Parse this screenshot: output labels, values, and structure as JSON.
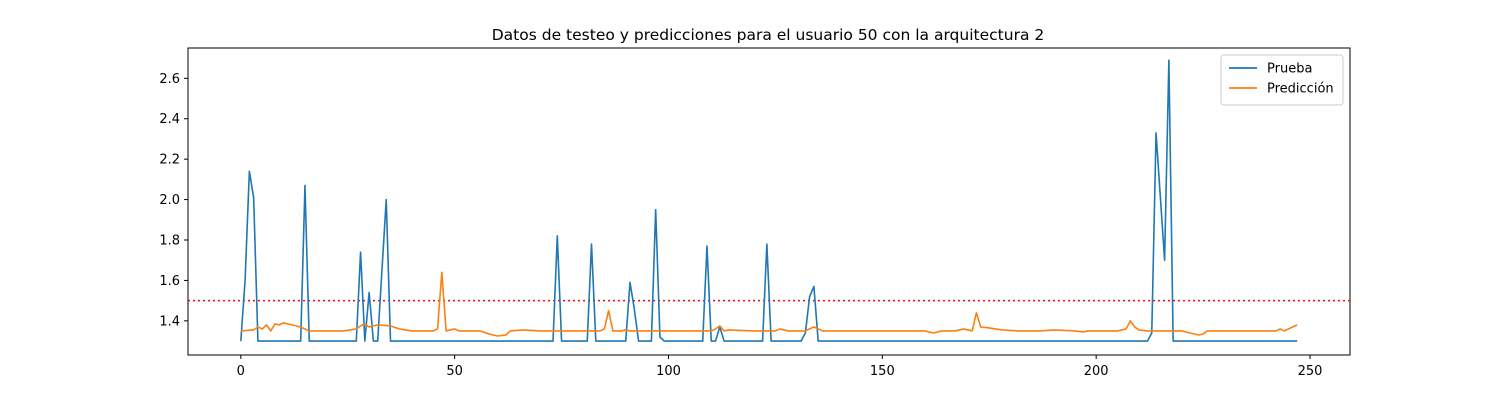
{
  "chart_data": {
    "type": "line",
    "title": "Datos de testeo y predicciones para el usuario 50 con la arquitectura 2",
    "xlabel": "",
    "ylabel": "",
    "xlim": [
      -12.35,
      259.35
    ],
    "ylim": [
      1.231,
      2.75
    ],
    "x_ticks": [
      0,
      50,
      100,
      150,
      200,
      250
    ],
    "y_ticks": [
      1.4,
      1.6,
      1.8,
      2.0,
      2.2,
      2.4,
      2.6
    ],
    "grid": false,
    "legend_position": "top-right",
    "threshold": {
      "value": 1.5,
      "color": "#ff0000",
      "style": "dotted"
    },
    "series": [
      {
        "name": "Prueba",
        "color": "#1f77b4",
        "points": [
          [
            0,
            1.3
          ],
          [
            1,
            1.6
          ],
          [
            2,
            2.14
          ],
          [
            3,
            2.01
          ],
          [
            4,
            1.3
          ],
          [
            14,
            1.3
          ],
          [
            15,
            2.07
          ],
          [
            16,
            1.3
          ],
          [
            27,
            1.3
          ],
          [
            28,
            1.74
          ],
          [
            29,
            1.3
          ],
          [
            30,
            1.54
          ],
          [
            31,
            1.3
          ],
          [
            32,
            1.3
          ],
          [
            34,
            2.0
          ],
          [
            35,
            1.3
          ],
          [
            73,
            1.3
          ],
          [
            74,
            1.82
          ],
          [
            75,
            1.3
          ],
          [
            81,
            1.3
          ],
          [
            82,
            1.78
          ],
          [
            83,
            1.3
          ],
          [
            90,
            1.3
          ],
          [
            91,
            1.59
          ],
          [
            92,
            1.46
          ],
          [
            93,
            1.3
          ],
          [
            96,
            1.3
          ],
          [
            97,
            1.95
          ],
          [
            98,
            1.32
          ],
          [
            99,
            1.3
          ],
          [
            108,
            1.3
          ],
          [
            109,
            1.77
          ],
          [
            110,
            1.3
          ],
          [
            111,
            1.3
          ],
          [
            112,
            1.37
          ],
          [
            113,
            1.3
          ],
          [
            122,
            1.3
          ],
          [
            123,
            1.78
          ],
          [
            124,
            1.3
          ],
          [
            131,
            1.3
          ],
          [
            132,
            1.34
          ],
          [
            133,
            1.52
          ],
          [
            134,
            1.57
          ],
          [
            135,
            1.3
          ],
          [
            212,
            1.3
          ],
          [
            213,
            1.34
          ],
          [
            214,
            2.33
          ],
          [
            216,
            1.7
          ],
          [
            217,
            2.69
          ],
          [
            218,
            1.3
          ],
          [
            247,
            1.3
          ]
        ]
      },
      {
        "name": "Predicción",
        "color": "#ff7f0e",
        "points": [
          [
            0,
            1.35
          ],
          [
            3,
            1.355
          ],
          [
            4,
            1.37
          ],
          [
            5,
            1.36
          ],
          [
            6,
            1.38
          ],
          [
            7,
            1.35
          ],
          [
            8,
            1.385
          ],
          [
            9,
            1.38
          ],
          [
            10,
            1.39
          ],
          [
            13,
            1.375
          ],
          [
            15,
            1.36
          ],
          [
            16,
            1.35
          ],
          [
            20,
            1.35
          ],
          [
            24,
            1.35
          ],
          [
            27,
            1.36
          ],
          [
            28,
            1.375
          ],
          [
            29,
            1.385
          ],
          [
            30,
            1.37
          ],
          [
            31,
            1.375
          ],
          [
            32,
            1.38
          ],
          [
            35,
            1.375
          ],
          [
            37,
            1.36
          ],
          [
            40,
            1.35
          ],
          [
            45,
            1.35
          ],
          [
            46,
            1.36
          ],
          [
            47,
            1.64
          ],
          [
            48,
            1.35
          ],
          [
            50,
            1.36
          ],
          [
            51,
            1.35
          ],
          [
            56,
            1.35
          ],
          [
            58,
            1.335
          ],
          [
            60,
            1.325
          ],
          [
            62,
            1.33
          ],
          [
            63,
            1.35
          ],
          [
            66,
            1.355
          ],
          [
            70,
            1.35
          ],
          [
            80,
            1.35
          ],
          [
            82,
            1.35
          ],
          [
            84,
            1.35
          ],
          [
            85,
            1.36
          ],
          [
            86,
            1.45
          ],
          [
            87,
            1.35
          ],
          [
            89,
            1.35
          ],
          [
            90,
            1.355
          ],
          [
            91,
            1.35
          ],
          [
            100,
            1.35
          ],
          [
            110,
            1.35
          ],
          [
            111,
            1.36
          ],
          [
            112,
            1.375
          ],
          [
            113,
            1.35
          ],
          [
            114,
            1.355
          ],
          [
            120,
            1.35
          ],
          [
            125,
            1.35
          ],
          [
            126,
            1.36
          ],
          [
            128,
            1.35
          ],
          [
            132,
            1.35
          ],
          [
            134,
            1.37
          ],
          [
            136,
            1.35
          ],
          [
            150,
            1.35
          ],
          [
            160,
            1.35
          ],
          [
            162,
            1.34
          ],
          [
            164,
            1.35
          ],
          [
            167,
            1.35
          ],
          [
            169,
            1.36
          ],
          [
            171,
            1.35
          ],
          [
            172,
            1.44
          ],
          [
            173,
            1.37
          ],
          [
            175,
            1.365
          ],
          [
            178,
            1.355
          ],
          [
            182,
            1.35
          ],
          [
            187,
            1.35
          ],
          [
            190,
            1.355
          ],
          [
            195,
            1.35
          ],
          [
            197,
            1.345
          ],
          [
            198,
            1.35
          ],
          [
            205,
            1.35
          ],
          [
            207,
            1.36
          ],
          [
            208,
            1.4
          ],
          [
            209,
            1.37
          ],
          [
            210,
            1.355
          ],
          [
            212,
            1.35
          ],
          [
            215,
            1.35
          ],
          [
            220,
            1.35
          ],
          [
            222,
            1.34
          ],
          [
            224,
            1.33
          ],
          [
            225,
            1.335
          ],
          [
            226,
            1.35
          ],
          [
            230,
            1.35
          ],
          [
            235,
            1.35
          ],
          [
            240,
            1.35
          ],
          [
            242,
            1.35
          ],
          [
            243,
            1.36
          ],
          [
            244,
            1.35
          ],
          [
            246,
            1.37
          ],
          [
            247,
            1.38
          ]
        ]
      }
    ]
  }
}
